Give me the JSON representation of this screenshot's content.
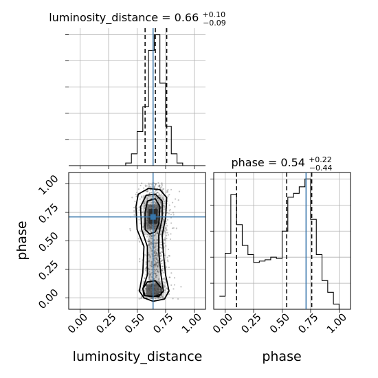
{
  "chart_data": [
    {
      "type": "histogram",
      "panel": "luminosity_distance marginal",
      "title": {
        "param": "luminosity_distance",
        "median": "0.66",
        "plus": "+0.10",
        "minus": "−0.09"
      },
      "xlim": [
        -0.1,
        1.1
      ],
      "bins": [
        {
          "x0": 0.3,
          "x1": 0.35,
          "v": 0.0
        },
        {
          "x0": 0.35,
          "x1": 0.4,
          "v": 0.0
        },
        {
          "x0": 0.4,
          "x1": 0.45,
          "v": 0.02
        },
        {
          "x0": 0.45,
          "x1": 0.5,
          "v": 0.09
        },
        {
          "x0": 0.5,
          "x1": 0.55,
          "v": 0.26
        },
        {
          "x0": 0.55,
          "x1": 0.6,
          "v": 0.45
        },
        {
          "x0": 0.6,
          "x1": 0.65,
          "v": 0.88
        },
        {
          "x0": 0.65,
          "x1": 0.7,
          "v": 1.0
        },
        {
          "x0": 0.7,
          "x1": 0.75,
          "v": 0.63
        },
        {
          "x0": 0.75,
          "x1": 0.8,
          "v": 0.3
        },
        {
          "x0": 0.8,
          "x1": 0.85,
          "v": 0.09
        },
        {
          "x0": 0.85,
          "x1": 0.9,
          "v": 0.02
        },
        {
          "x0": 0.9,
          "x1": 0.95,
          "v": 0.0
        }
      ],
      "quantiles": [
        0.57,
        0.66,
        0.76
      ],
      "truth": 0.64
    },
    {
      "type": "histogram",
      "panel": "phase marginal",
      "title": {
        "param": "phase",
        "median": "0.54",
        "plus": "+0.22",
        "minus": "−0.44"
      },
      "xlim": [
        -0.1,
        1.1
      ],
      "xlabel": "phase",
      "xticks": [
        "0.00",
        "0.25",
        "0.50",
        "0.75",
        "1.00"
      ],
      "bins": [
        {
          "x0": -0.05,
          "x1": 0.0,
          "v": 0.1
        },
        {
          "x0": 0.0,
          "x1": 0.05,
          "v": 0.43
        },
        {
          "x0": 0.05,
          "x1": 0.1,
          "v": 0.88
        },
        {
          "x0": 0.1,
          "x1": 0.15,
          "v": 0.65
        },
        {
          "x0": 0.15,
          "x1": 0.2,
          "v": 0.49
        },
        {
          "x0": 0.2,
          "x1": 0.25,
          "v": 0.42
        },
        {
          "x0": 0.25,
          "x1": 0.3,
          "v": 0.36
        },
        {
          "x0": 0.3,
          "x1": 0.35,
          "v": 0.37
        },
        {
          "x0": 0.35,
          "x1": 0.4,
          "v": 0.38
        },
        {
          "x0": 0.4,
          "x1": 0.45,
          "v": 0.4
        },
        {
          "x0": 0.45,
          "x1": 0.5,
          "v": 0.39
        },
        {
          "x0": 0.5,
          "x1": 0.55,
          "v": 0.6
        },
        {
          "x0": 0.55,
          "x1": 0.6,
          "v": 0.86
        },
        {
          "x0": 0.6,
          "x1": 0.65,
          "v": 0.89
        },
        {
          "x0": 0.65,
          "x1": 0.7,
          "v": 0.94
        },
        {
          "x0": 0.7,
          "x1": 0.75,
          "v": 1.0
        },
        {
          "x0": 0.75,
          "x1": 0.8,
          "v": 0.69
        },
        {
          "x0": 0.8,
          "x1": 0.85,
          "v": 0.42
        },
        {
          "x0": 0.85,
          "x1": 0.9,
          "v": 0.22
        },
        {
          "x0": 0.9,
          "x1": 0.95,
          "v": 0.13
        },
        {
          "x0": 0.95,
          "x1": 1.0,
          "v": 0.04
        },
        {
          "x0": 1.0,
          "x1": 1.05,
          "v": 0.0
        }
      ],
      "quantiles": [
        0.1,
        0.54,
        0.76
      ],
      "truth": 0.71
    },
    {
      "type": "scatter",
      "panel": "phase vs luminosity_distance",
      "xlabel": "luminosity_distance",
      "ylabel": "phase",
      "xlim": [
        -0.1,
        1.1
      ],
      "ylim": [
        -0.1,
        1.1
      ],
      "xticks": [
        "0.00",
        "0.25",
        "0.50",
        "0.75",
        "1.00"
      ],
      "yticks": [
        "0.00",
        "0.25",
        "0.50",
        "0.75",
        "1.00"
      ],
      "truth": {
        "x": 0.64,
        "y": 0.71
      },
      "contours": [
        {
          "level": "outer",
          "cx": 0.66,
          "path": [
            [
              0.56,
              0.0
            ],
            [
              0.52,
              0.06
            ],
            [
              0.55,
              0.22
            ],
            [
              0.56,
              0.45
            ],
            [
              0.5,
              0.6
            ],
            [
              0.49,
              0.8
            ],
            [
              0.51,
              0.91
            ],
            [
              0.6,
              0.96
            ],
            [
              0.7,
              0.95
            ],
            [
              0.76,
              0.88
            ],
            [
              0.75,
              0.7
            ],
            [
              0.72,
              0.55
            ],
            [
              0.73,
              0.4
            ],
            [
              0.75,
              0.2
            ],
            [
              0.78,
              0.06
            ],
            [
              0.74,
              -0.01
            ],
            [
              0.64,
              -0.03
            ]
          ]
        },
        {
          "level": "middle",
          "cx": 0.66,
          "path": [
            [
              0.57,
              0.02
            ],
            [
              0.55,
              0.08
            ],
            [
              0.59,
              0.2
            ],
            [
              0.59,
              0.45
            ],
            [
              0.54,
              0.6
            ],
            [
              0.53,
              0.8
            ],
            [
              0.58,
              0.9
            ],
            [
              0.66,
              0.91
            ],
            [
              0.72,
              0.85
            ],
            [
              0.72,
              0.7
            ],
            [
              0.69,
              0.55
            ],
            [
              0.69,
              0.4
            ],
            [
              0.71,
              0.2
            ],
            [
              0.73,
              0.06
            ],
            [
              0.69,
              0.01
            ]
          ]
        },
        {
          "level": "inner-top",
          "cx": 0.64,
          "path": [
            [
              0.57,
              0.6
            ],
            [
              0.57,
              0.75
            ],
            [
              0.59,
              0.85
            ],
            [
              0.66,
              0.87
            ],
            [
              0.7,
              0.8
            ],
            [
              0.69,
              0.65
            ],
            [
              0.66,
              0.58
            ],
            [
              0.61,
              0.56
            ]
          ]
        },
        {
          "level": "inner-bottom",
          "cx": 0.64,
          "path": [
            [
              0.56,
              0.02
            ],
            [
              0.55,
              0.08
            ],
            [
              0.59,
              0.14
            ],
            [
              0.66,
              0.15
            ],
            [
              0.71,
              0.09
            ],
            [
              0.71,
              0.03
            ],
            [
              0.64,
              0.01
            ]
          ]
        }
      ]
    }
  ]
}
